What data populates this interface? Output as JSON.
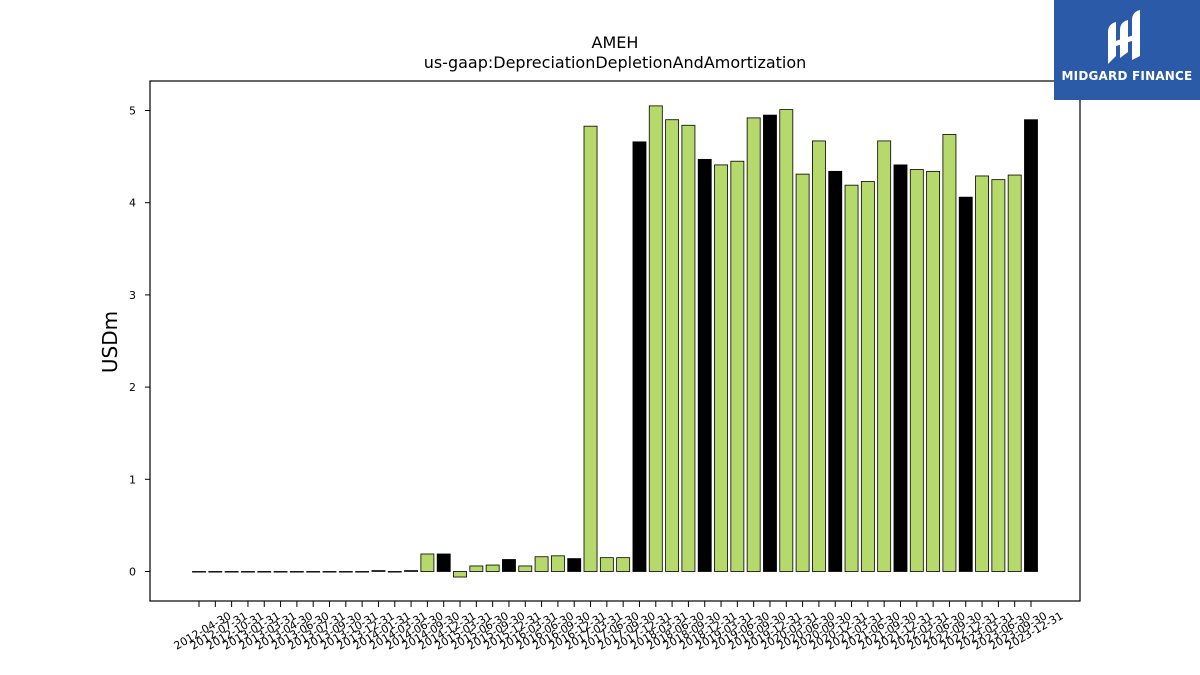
{
  "chart_data": {
    "type": "bar",
    "title": "AMEH",
    "subtitle": "us-gaap:DepreciationDepletionAndAmortization",
    "xlabel": "",
    "ylabel": "USDm",
    "ylim": [
      -0.32,
      5.32
    ],
    "yticks": [
      0,
      1,
      2,
      3,
      4,
      5
    ],
    "grid": false,
    "categories": [
      "2012-04-30",
      "2012-07-31",
      "2012-10-31",
      "2013-01-31",
      "2013-03-31",
      "2013-04-30",
      "2013-06-30",
      "2013-07-31",
      "2013-09-30",
      "2013-10-31",
      "2013-12-31",
      "2014-01-31",
      "2014-03-31",
      "2014-06-30",
      "2014-09-30",
      "2014-12-31",
      "2015-03-31",
      "2015-06-30",
      "2015-09-30",
      "2015-12-31",
      "2016-03-31",
      "2016-06-30",
      "2016-09-30",
      "2016-12-31",
      "2017-03-31",
      "2017-06-30",
      "2017-09-30",
      "2017-12-31",
      "2018-03-31",
      "2018-06-30",
      "2018-09-30",
      "2018-12-31",
      "2019-03-31",
      "2019-06-30",
      "2019-09-30",
      "2019-12-31",
      "2020-03-31",
      "2020-06-30",
      "2020-09-30",
      "2020-12-31",
      "2021-03-31",
      "2021-06-30",
      "2021-09-30",
      "2021-12-31",
      "2022-03-31",
      "2022-06-30",
      "2022-09-30",
      "2022-12-31",
      "2023-03-31",
      "2023-06-30",
      "2023-09-30",
      "2023-12-31"
    ],
    "values": [
      0.0,
      0.0,
      0.0,
      0.0,
      0.0,
      0.0,
      0.0,
      0.0,
      0.0,
      0.0,
      0.0,
      0.01,
      0.0,
      0.01,
      0.19,
      0.19,
      -0.06,
      0.06,
      0.07,
      0.13,
      0.06,
      0.16,
      0.17,
      0.14,
      4.83,
      0.15,
      0.15,
      4.66,
      5.05,
      4.9,
      4.84,
      4.47,
      4.41,
      4.45,
      4.92,
      4.95,
      5.01,
      4.31,
      4.67,
      4.34,
      4.19,
      4.23,
      4.67,
      4.41,
      4.36,
      4.34,
      4.74,
      4.06,
      4.29,
      4.25,
      4.3,
      4.9
    ],
    "bar_colors": {
      "quarter": "#b5d96a",
      "year_end": "#000000",
      "edge": "#000000"
    },
    "year_end_indices": [
      10,
      15,
      19,
      23,
      27,
      31,
      35,
      39,
      43,
      47,
      51
    ]
  },
  "logo": {
    "text": "MIDGARD FINANCE",
    "background": "#2b5aa8",
    "icon": "midgard-logo-icon"
  }
}
